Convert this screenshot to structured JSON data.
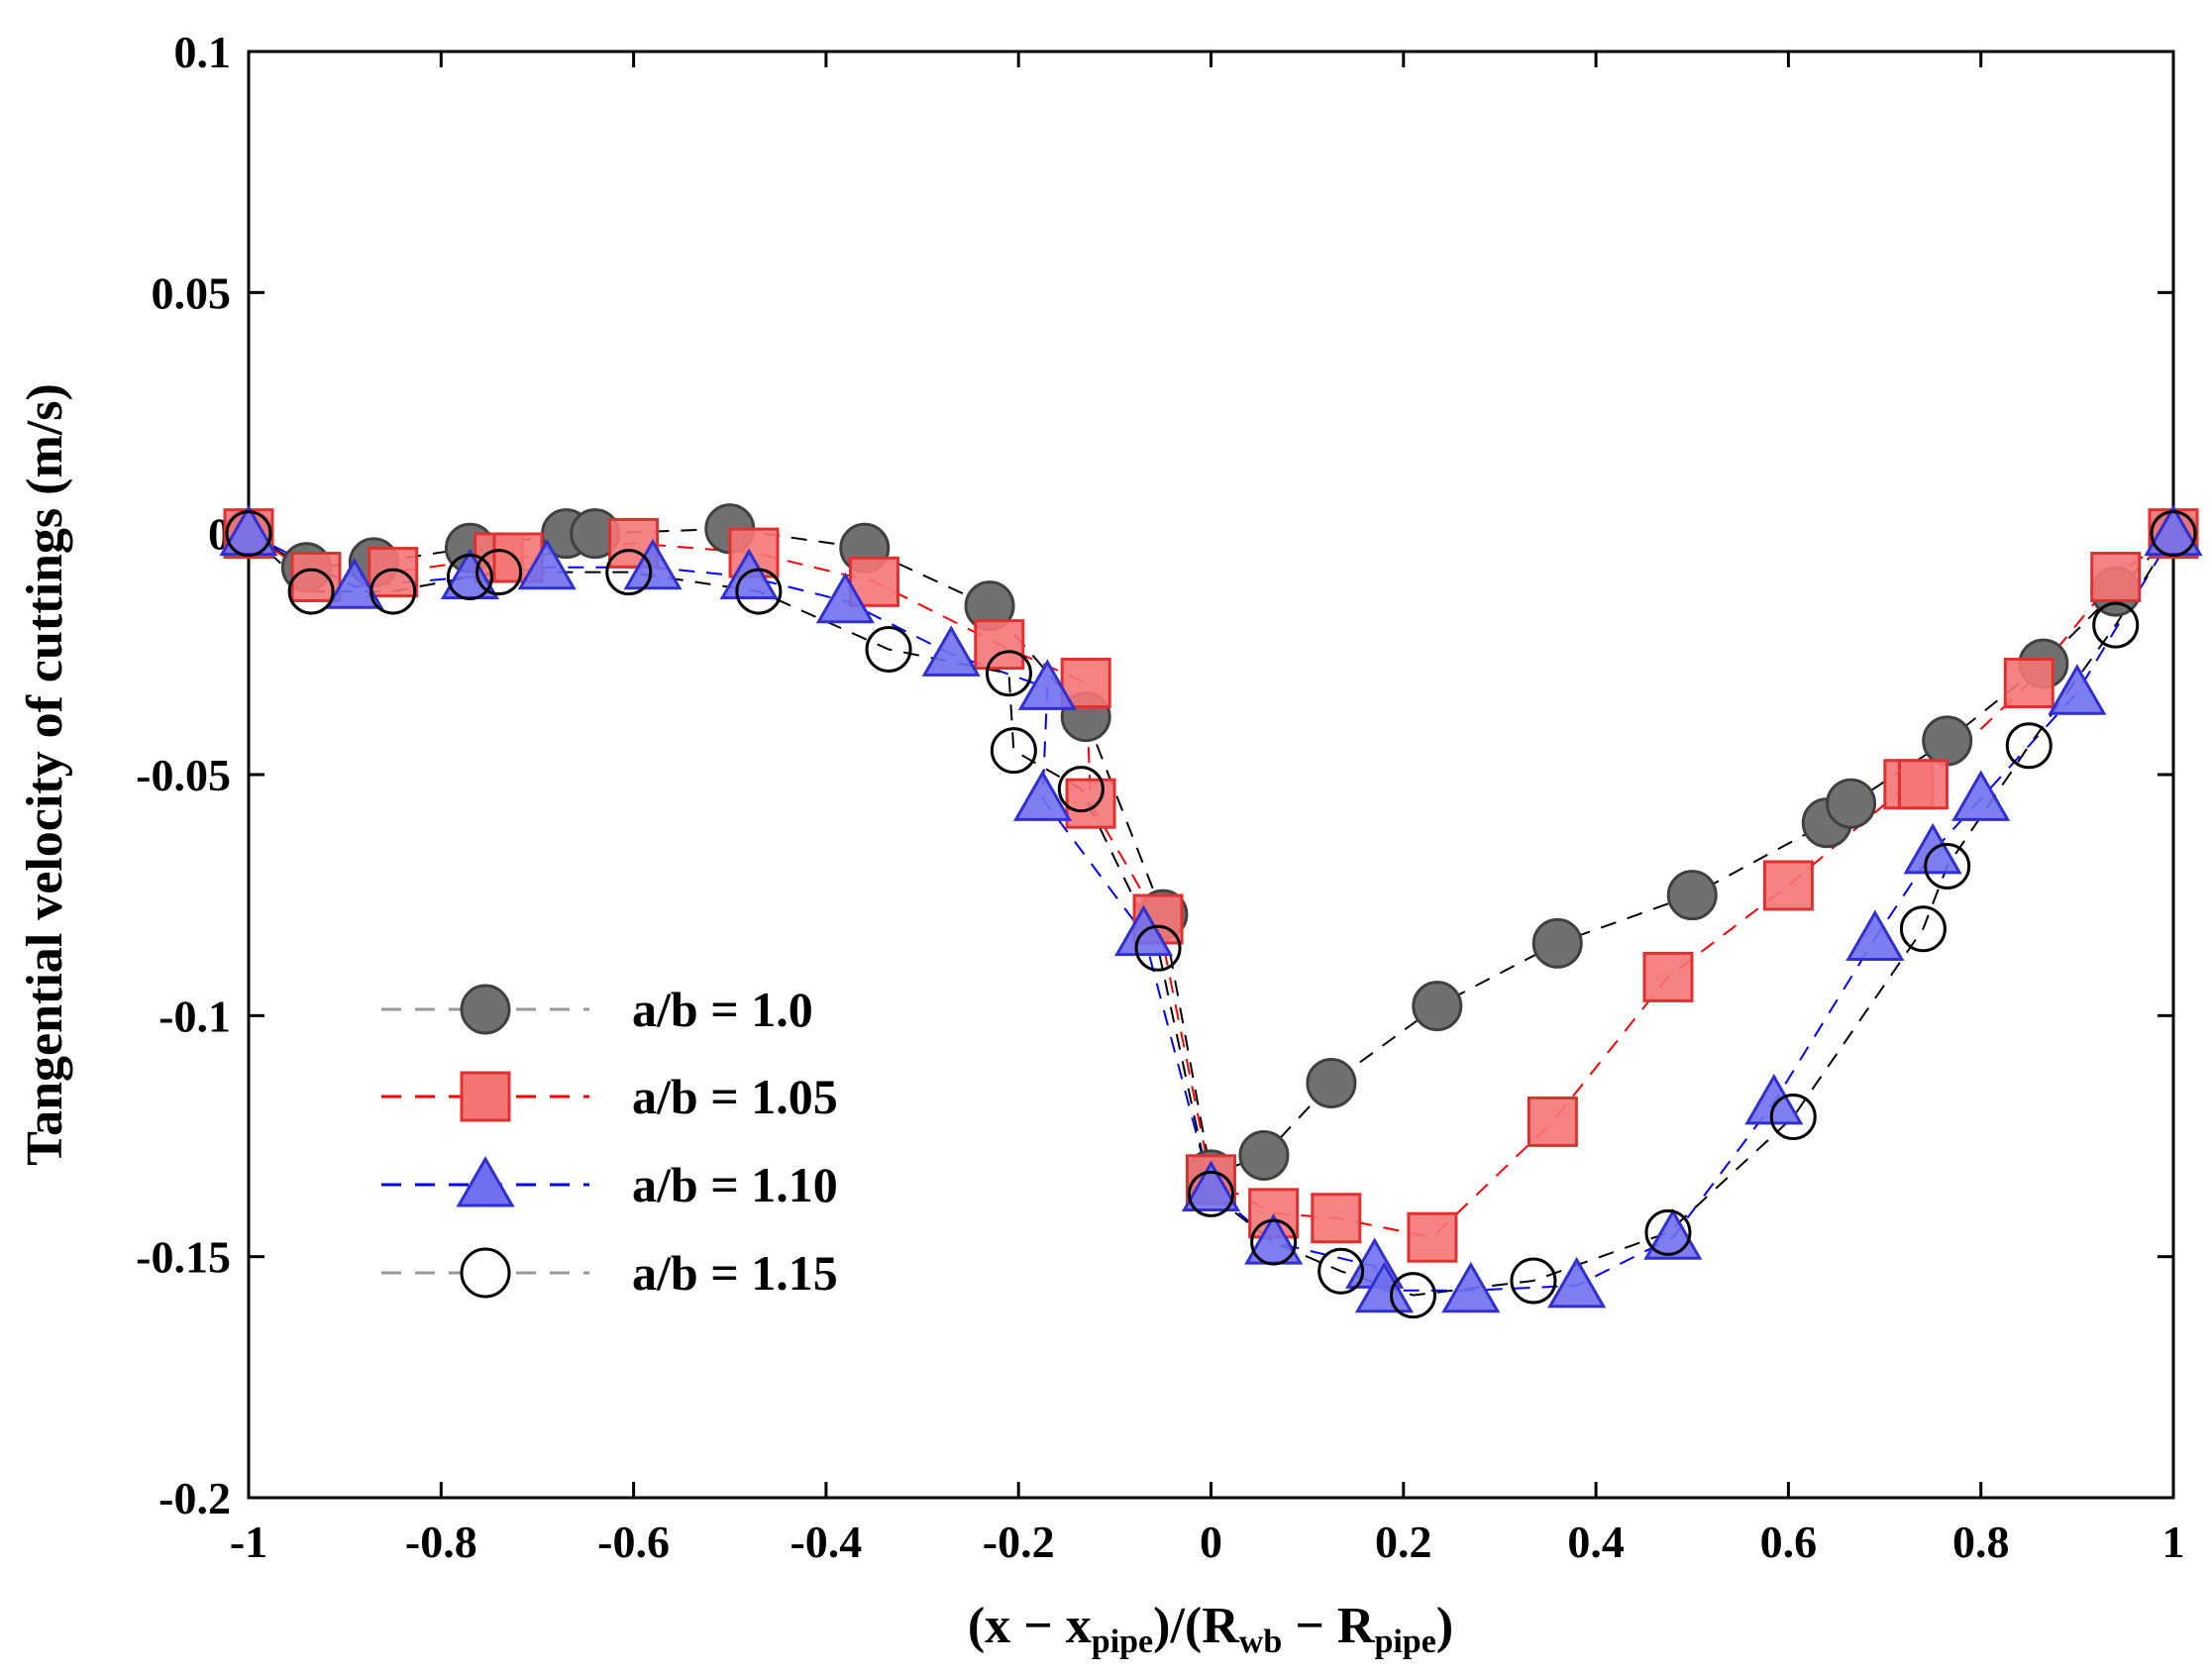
{
  "chart_data": {
    "type": "scatter",
    "title": "",
    "ylabel": "Tangential velocity of cuttings (m/s)",
    "xlabel": {
      "prefix": "(x − x",
      "sub1": "pipe",
      "mid": ")/(R",
      "sub2": "wb",
      "mid2": " − R",
      "sub3": "pipe",
      "suffix": ")"
    },
    "xlim": [
      -1,
      1
    ],
    "ylim": [
      -0.2,
      0.1
    ],
    "xticks": [
      -1,
      -0.8,
      -0.6,
      -0.4,
      -0.2,
      0,
      0.2,
      0.4,
      0.6,
      0.8,
      1
    ],
    "xtick_labels": [
      "-1",
      "-0.8",
      "-0.6",
      "-0.4",
      "-0.2",
      "0",
      "0.2",
      "0.4",
      "0.6",
      "0.8",
      "1"
    ],
    "yticks": [
      -0.2,
      -0.15,
      -0.1,
      -0.05,
      0,
      0.05,
      0.1
    ],
    "ytick_labels": [
      "-0.2",
      "-0.15",
      "-0.1",
      "-0.05",
      "0",
      "0.05",
      "0.1"
    ],
    "legend_position": "lower-left",
    "series": [
      {
        "name": "a/b = 1.0",
        "marker": "circle-filled",
        "line_color": "#000000",
        "fill": "#707070",
        "stroke": "#404040",
        "x": [
          -1.0,
          -0.94,
          -0.87,
          -0.77,
          -0.67,
          -0.64,
          -0.5,
          -0.36,
          -0.23,
          -0.13,
          -0.05,
          0.0,
          0.055,
          0.125,
          0.235,
          0.36,
          0.5,
          0.64,
          0.665,
          0.765,
          0.865,
          0.94,
          1.0
        ],
        "y": [
          0.0,
          -0.007,
          -0.006,
          -0.003,
          0.0,
          0.0,
          0.001,
          -0.003,
          -0.015,
          -0.038,
          -0.079,
          -0.133,
          -0.129,
          -0.114,
          -0.098,
          -0.085,
          -0.075,
          -0.06,
          -0.056,
          -0.043,
          -0.027,
          -0.012,
          0.0
        ]
      },
      {
        "name": "a/b = 1.05",
        "marker": "square-filled",
        "line_color": "#ff0000",
        "fill": "#f57575",
        "stroke": "#e03030",
        "x": [
          -1.0,
          -0.93,
          -0.85,
          -0.74,
          -0.72,
          -0.6,
          -0.475,
          -0.35,
          -0.22,
          -0.13,
          -0.125,
          -0.055,
          0.0,
          0.065,
          0.13,
          0.23,
          0.355,
          0.475,
          0.6,
          0.725,
          0.74,
          0.85,
          0.94,
          1.0
        ],
        "y": [
          0.0,
          -0.009,
          -0.008,
          -0.005,
          -0.005,
          -0.002,
          -0.004,
          -0.01,
          -0.023,
          -0.031,
          -0.056,
          -0.08,
          -0.134,
          -0.141,
          -0.142,
          -0.146,
          -0.122,
          -0.092,
          -0.073,
          -0.052,
          -0.052,
          -0.031,
          -0.009,
          0.0
        ]
      },
      {
        "name": "a/b = 1.10",
        "marker": "triangle-filled",
        "line_color": "#0000ff",
        "fill": "#7070f0",
        "stroke": "#3030d0",
        "x": [
          -1.0,
          -0.89,
          -0.77,
          -0.69,
          -0.58,
          -0.48,
          -0.38,
          -0.27,
          -0.17,
          -0.175,
          -0.07,
          0.0,
          0.065,
          0.17,
          0.18,
          0.27,
          0.38,
          0.48,
          0.585,
          0.69,
          0.75,
          0.8,
          0.9,
          1.0
        ],
        "y": [
          0.0,
          -0.011,
          -0.009,
          -0.007,
          -0.007,
          -0.009,
          -0.014,
          -0.025,
          -0.032,
          -0.055,
          -0.083,
          -0.136,
          -0.147,
          -0.152,
          -0.157,
          -0.157,
          -0.156,
          -0.146,
          -0.118,
          -0.084,
          -0.066,
          -0.055,
          -0.033,
          0.0
        ]
      },
      {
        "name": "a/b = 1.15",
        "marker": "circle-open",
        "line_color": "#000000",
        "fill": "none",
        "stroke": "#000000",
        "x": [
          -1.0,
          -0.935,
          -0.85,
          -0.77,
          -0.74,
          -0.605,
          -0.47,
          -0.335,
          -0.21,
          -0.205,
          -0.135,
          -0.055,
          0.0,
          0.065,
          0.135,
          0.21,
          0.335,
          0.475,
          0.605,
          0.74,
          0.765,
          0.85,
          0.94,
          1.0
        ],
        "y": [
          0.0,
          -0.012,
          -0.012,
          -0.009,
          -0.008,
          -0.008,
          -0.012,
          -0.024,
          -0.029,
          -0.045,
          -0.053,
          -0.086,
          -0.137,
          -0.147,
          -0.153,
          -0.158,
          -0.155,
          -0.145,
          -0.121,
          -0.082,
          -0.069,
          -0.044,
          -0.019,
          0.0
        ]
      }
    ]
  }
}
